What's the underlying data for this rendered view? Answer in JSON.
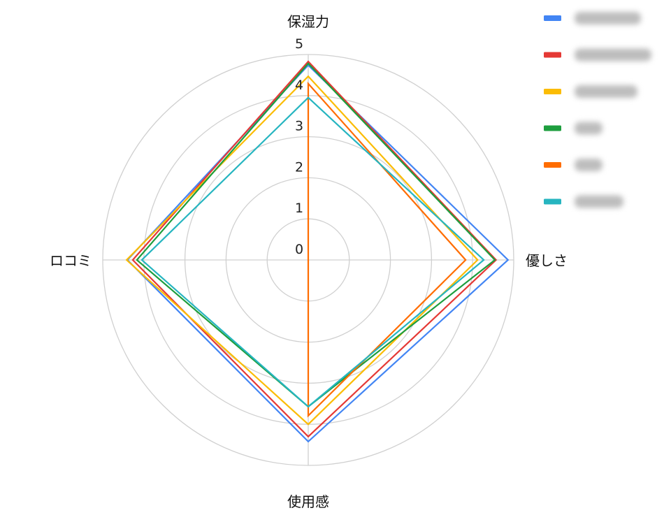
{
  "chart_data": {
    "type": "radar",
    "axes": [
      "保湿力",
      "優しさ",
      "使用感",
      "ロコミ"
    ],
    "rlim": [
      0,
      5
    ],
    "ticks": [
      "0",
      "1",
      "2",
      "3",
      "4",
      "5"
    ],
    "grid": true,
    "legend_position": "top-right",
    "series": [
      {
        "color": "#4285f4",
        "values": [
          4.74,
          4.86,
          4.42,
          4.4
        ]
      },
      {
        "color": "#e53935",
        "values": [
          4.83,
          4.57,
          4.3,
          4.27
        ]
      },
      {
        "color": "#fbbc04",
        "values": [
          4.47,
          4.12,
          4.0,
          4.42
        ]
      },
      {
        "color": "#1e9e3e",
        "values": [
          4.78,
          4.54,
          3.57,
          4.17
        ]
      },
      {
        "color": "#ff6d00",
        "values": [
          4.29,
          3.83,
          3.79,
          0
        ]
      },
      {
        "color": "#26b5c0",
        "values": [
          3.95,
          4.27,
          3.57,
          4.05
        ]
      }
    ]
  }
}
